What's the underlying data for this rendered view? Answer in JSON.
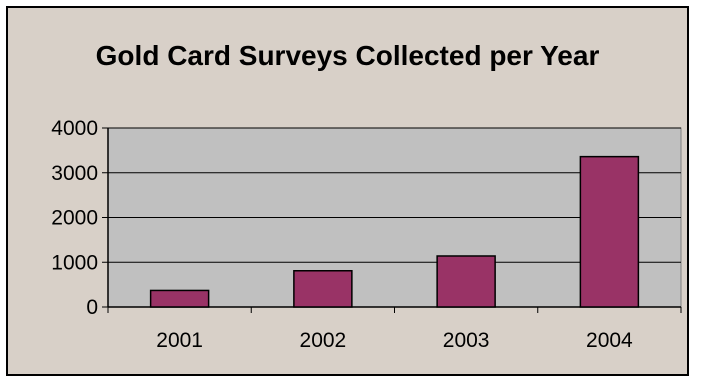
{
  "chart_data": {
    "type": "bar",
    "title": "Gold Card Surveys Collected per Year",
    "xlabel": "",
    "ylabel": "",
    "categories": [
      "2001",
      "2002",
      "2003",
      "2004"
    ],
    "values": [
      370,
      810,
      1140,
      3360
    ],
    "ylim": [
      0,
      4000
    ],
    "yticks": [
      "0",
      "1000",
      "2000",
      "3000",
      "4000"
    ],
    "grid": true,
    "legend": "none",
    "colors": {
      "bar": "#993366",
      "plot_area": "#c0c0c0",
      "background": "#d8d0c8",
      "axis": "#000000"
    }
  }
}
